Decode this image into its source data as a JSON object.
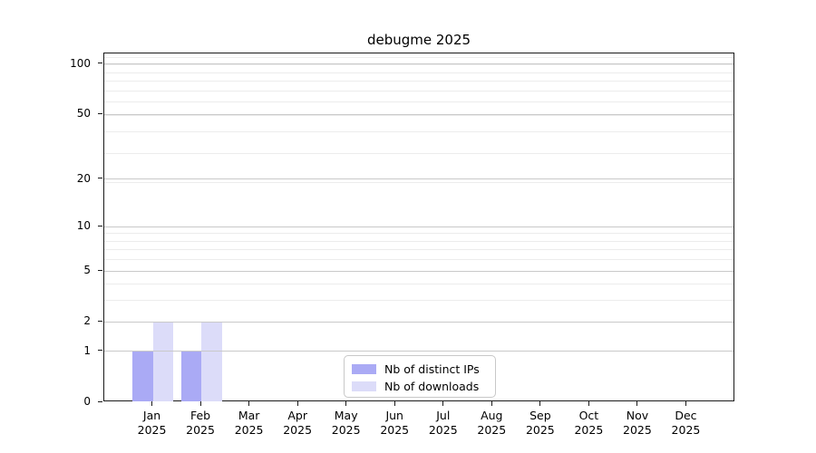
{
  "chart_data": {
    "type": "bar",
    "title": "debugme 2025",
    "x": {
      "categories": [
        {
          "month": "Jan",
          "year": "2025"
        },
        {
          "month": "Feb",
          "year": "2025"
        },
        {
          "month": "Mar",
          "year": "2025"
        },
        {
          "month": "Apr",
          "year": "2025"
        },
        {
          "month": "May",
          "year": "2025"
        },
        {
          "month": "Jun",
          "year": "2025"
        },
        {
          "month": "Jul",
          "year": "2025"
        },
        {
          "month": "Aug",
          "year": "2025"
        },
        {
          "month": "Sep",
          "year": "2025"
        },
        {
          "month": "Oct",
          "year": "2025"
        },
        {
          "month": "Nov",
          "year": "2025"
        },
        {
          "month": "Dec",
          "year": "2025"
        }
      ]
    },
    "y_axis": {
      "scale": "log10(1+y)",
      "ticks": [
        0,
        1,
        2,
        5,
        10,
        20,
        50,
        100
      ],
      "minor_gridlines": [
        3,
        4,
        6,
        7,
        8,
        9,
        19,
        29,
        39,
        49,
        59,
        69,
        79,
        89,
        99,
        109
      ],
      "top_value": 116,
      "major_grid_color": "#c9c9c9",
      "minor_grid_color": "#ececec"
    },
    "series": [
      {
        "key": "distinct-ips",
        "name": "Nb of distinct IPs",
        "color": "#aaaaf5",
        "values": [
          1,
          1,
          0,
          0,
          0,
          0,
          0,
          0,
          0,
          0,
          0,
          0
        ]
      },
      {
        "key": "downloads",
        "name": "Nb of downloads",
        "color": "#dcdcf9",
        "values": [
          2,
          2,
          0,
          0,
          0,
          0,
          0,
          0,
          0,
          0,
          0,
          0
        ]
      }
    ],
    "legend": {
      "position": "inside-bottom-center"
    },
    "grid": true,
    "background": "#ffffff"
  }
}
